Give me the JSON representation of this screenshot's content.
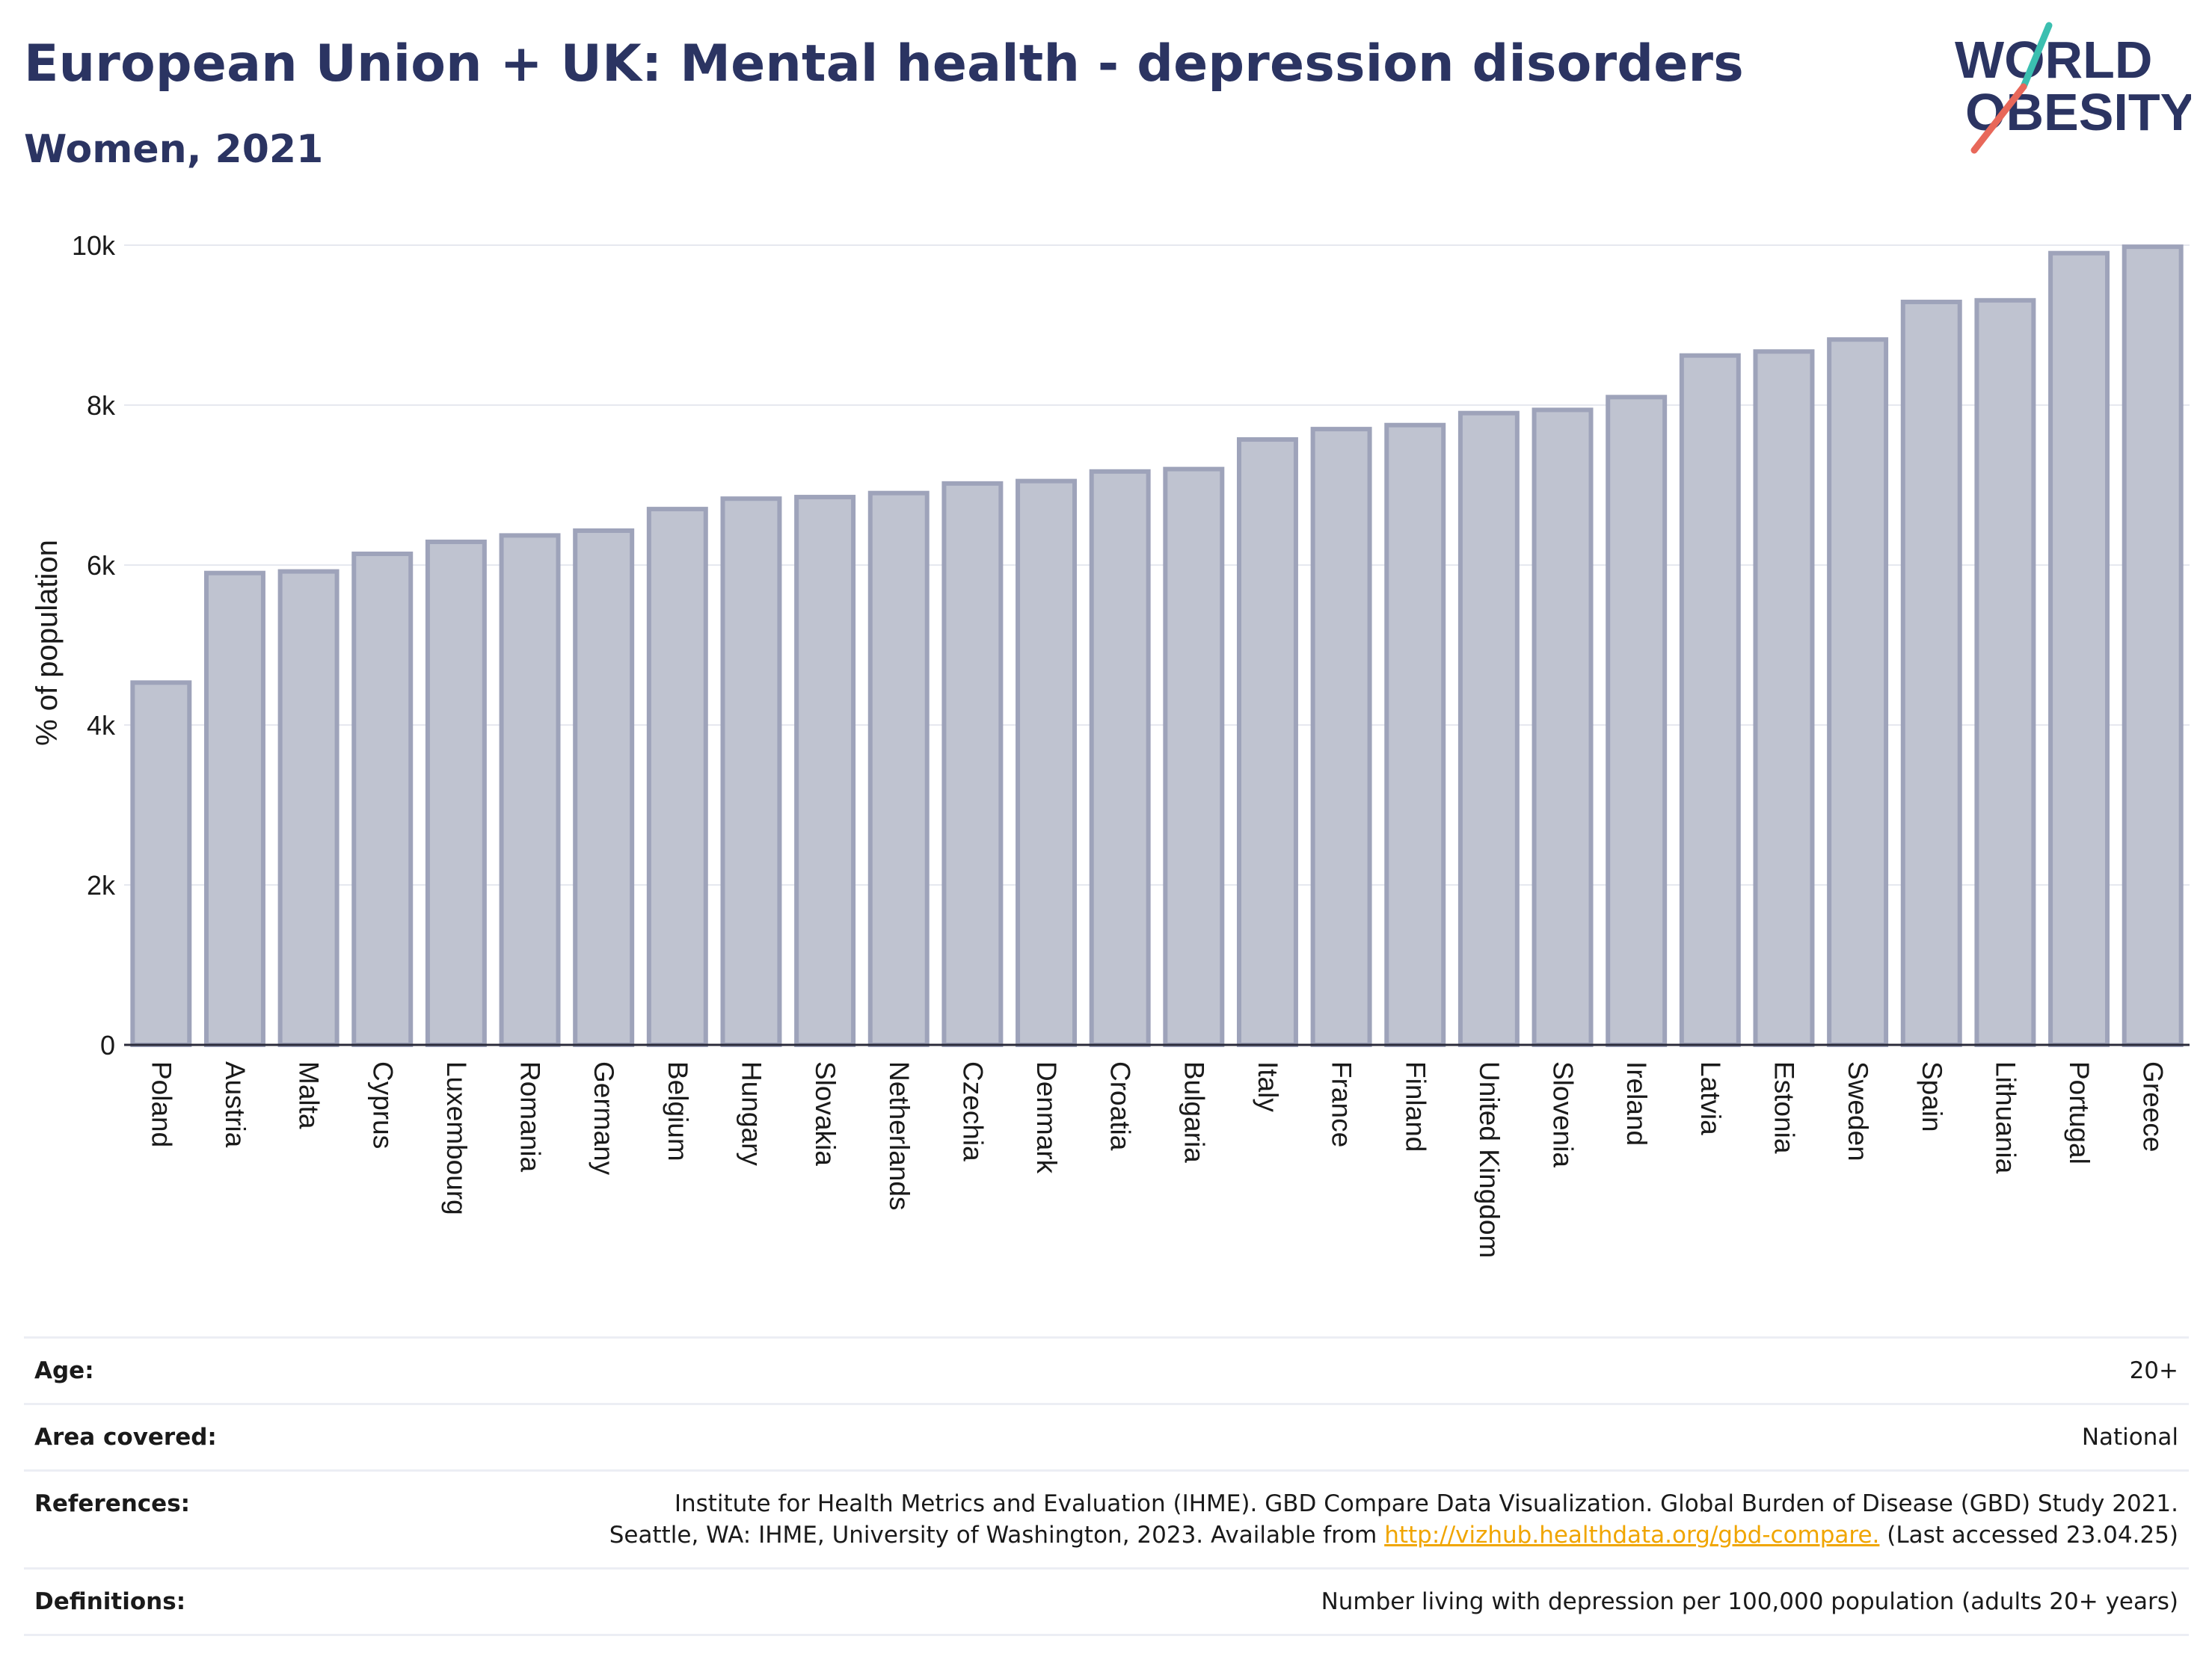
{
  "header": {
    "title": "European Union + UK: Mental health - depression disorders",
    "subtitle": "Women, 2021"
  },
  "logo": {
    "line1": "WORLD",
    "line2": "OBESITY",
    "colors": {
      "text": "#2b3462",
      "accent_teal": "#3bbfb0",
      "accent_red": "#e8685a"
    }
  },
  "chart_data": {
    "type": "bar",
    "ylabel": "% of population",
    "xlabel": "",
    "ylim": [
      0,
      10000
    ],
    "yticks": [
      0,
      2000,
      4000,
      6000,
      8000,
      10000
    ],
    "ytick_labels": [
      "0",
      "2k",
      "4k",
      "6k",
      "8k",
      "10k"
    ],
    "grid": true,
    "bar_fill": "#bfc3d0",
    "bar_stroke": "#9ea3ba",
    "categories": [
      "Poland",
      "Austria",
      "Malta",
      "Cyprus",
      "Luxembourg",
      "Romania",
      "Germany",
      "Belgium",
      "Hungary",
      "Slovakia",
      "Netherlands",
      "Czechia",
      "Denmark",
      "Croatia",
      "Bulgaria",
      "Italy",
      "France",
      "Finland",
      "United Kingdom",
      "Slovenia",
      "Ireland",
      "Latvia",
      "Estonia",
      "Sweden",
      "Spain",
      "Lithuania",
      "Portugal",
      "Greece"
    ],
    "values": [
      4530,
      5900,
      5920,
      6140,
      6290,
      6370,
      6430,
      6700,
      6830,
      6850,
      6900,
      7020,
      7050,
      7170,
      7200,
      7570,
      7700,
      7750,
      7900,
      7940,
      8100,
      8620,
      8670,
      8820,
      9290,
      9310,
      9900,
      9980
    ]
  },
  "info": {
    "rows": [
      {
        "label": "Age:",
        "value": "20+"
      },
      {
        "label": "Area covered:",
        "value": "National"
      },
      {
        "label": "References:",
        "line1": "Institute for Health Metrics and Evaluation (IHME). GBD Compare Data Visualization. Global Burden of Disease (GBD) Study 2021.",
        "line2_before": "Seattle, WA: IHME, University of Washington, 2023. Available from",
        "link": "http://vizhub.healthdata.org/gbd-compare.",
        "line2_after": "(Last accessed 23.04.25)"
      },
      {
        "label": "Definitions:",
        "value": "Number living with depression per 100,000 population (adults 20+ years)"
      }
    ]
  }
}
